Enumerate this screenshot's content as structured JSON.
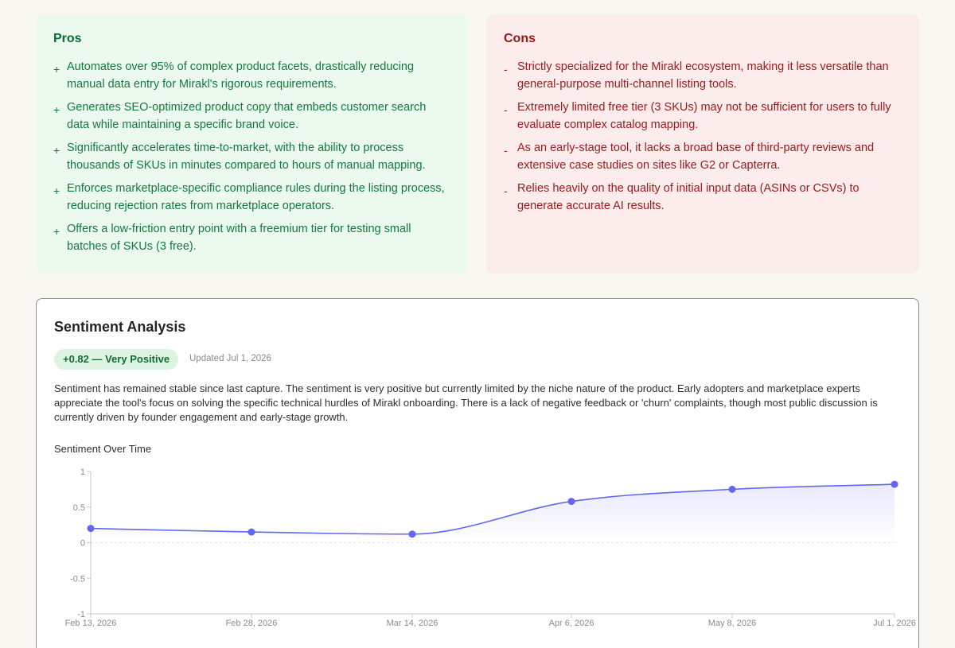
{
  "pros": {
    "title": "Pros",
    "marker": "+",
    "items": [
      "Automates over 95% of complex product facets, drastically reducing manual data entry for Mirakl's rigorous requirements.",
      "Generates SEO-optimized product copy that embeds customer search data while maintaining a specific brand voice.",
      "Significantly accelerates time-to-market, with the ability to process thousands of SKUs in minutes compared to hours of manual mapping.",
      "Enforces marketplace-specific compliance rules during the listing process, reducing rejection rates from marketplace operators.",
      "Offers a low-friction entry point with a freemium tier for testing small batches of SKUs (3 free)."
    ]
  },
  "cons": {
    "title": "Cons",
    "marker": "-",
    "items": [
      "Strictly specialized for the Mirakl ecosystem, making it less versatile than general-purpose multi-channel listing tools.",
      "Extremely limited free tier (3 SKUs) may not be sufficient for users to fully evaluate complex catalog mapping.",
      "As an early-stage tool, it lacks a broad base of third-party reviews and extensive case studies on sites like G2 or Capterra.",
      "Relies heavily on the quality of initial input data (ASINs or CSVs) to generate accurate AI results."
    ]
  },
  "sentiment": {
    "title": "Sentiment Analysis",
    "badge": "+0.82 — Very Positive",
    "updated": "Updated Jul 1, 2026",
    "summary": "Sentiment has remained stable since last capture. The sentiment is very positive but currently limited by the niche nature of the product. Early adopters and marketplace experts appreciate the tool's focus on solving the specific technical hurdles of Mirakl onboarding. There is a lack of negative feedback or 'churn' complaints, though most public discussion is currently driven by founder engagement and early-stage growth.",
    "chart_title": "Sentiment Over Time"
  },
  "colors": {
    "pros_bg": "#ecf9ee",
    "pros_text": "#137a3d",
    "cons_bg": "#fcecec",
    "cons_text": "#a11a1a",
    "line": "#6366f1",
    "badge_bg": "#def4e3"
  },
  "chart_data": {
    "type": "line",
    "title": "Sentiment Over Time",
    "x": [
      "Feb 13, 2026",
      "Feb 28, 2026",
      "Mar 14, 2026",
      "Apr 6, 2026",
      "May 8, 2026",
      "Jul 1, 2026"
    ],
    "series": [
      {
        "values": [
          0.2,
          0.15,
          0.12,
          0.58,
          0.75,
          0.82
        ]
      }
    ],
    "ylim": [
      -1,
      1
    ],
    "yticks": [
      -1,
      -0.5,
      0,
      0.5,
      1
    ],
    "ytick_labels": [
      "-1",
      "-0.5",
      "0",
      "0.5",
      "1"
    ],
    "grid": false
  }
}
